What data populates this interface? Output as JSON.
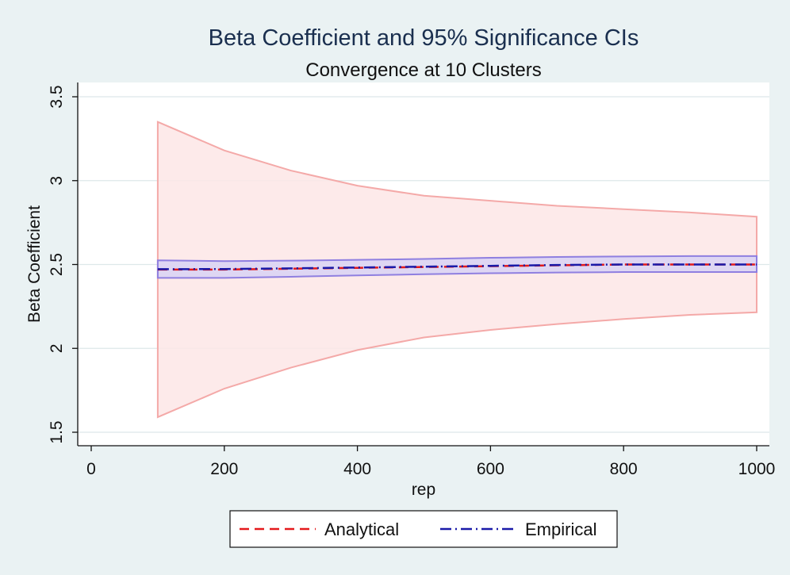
{
  "chart_data": {
    "type": "line",
    "title": "Beta Coefficient and 95% Significance CIs",
    "subtitle": "Convergence at 10 Clusters",
    "xlabel": "rep",
    "ylabel": "Beta Coefficient",
    "xlim": [
      0,
      1000
    ],
    "ylim": [
      1.5,
      3.5
    ],
    "x_ticks": [
      0,
      200,
      400,
      600,
      800,
      1000
    ],
    "y_ticks": [
      1.5,
      2,
      2.5,
      3,
      3.5
    ],
    "x_tick_labels": [
      "0",
      "200",
      "400",
      "600",
      "800",
      "1000"
    ],
    "y_tick_labels": [
      "1.5",
      "2",
      "2.5",
      "3",
      "3.5"
    ],
    "grid": true,
    "legend_position": "bottom",
    "x": [
      100,
      200,
      300,
      400,
      500,
      600,
      700,
      800,
      900,
      1000
    ],
    "series": [
      {
        "name": "Analytical",
        "color": "#e41a1c",
        "dash": "dash",
        "values": [
          2.47,
          2.47,
          2.475,
          2.48,
          2.485,
          2.49,
          2.495,
          2.5,
          2.5,
          2.5
        ]
      },
      {
        "name": "Empirical",
        "color": "#1a1aa8",
        "dash": "dashdot",
        "values": [
          2.472,
          2.473,
          2.477,
          2.482,
          2.487,
          2.492,
          2.497,
          2.5,
          2.5,
          2.5
        ]
      }
    ],
    "bands": [
      {
        "series": "Analytical",
        "fill": "#fde6e6",
        "stroke": "#f4a9a8",
        "upper": [
          3.35,
          3.18,
          3.06,
          2.97,
          2.91,
          2.88,
          2.85,
          2.83,
          2.81,
          2.785
        ],
        "lower": [
          1.59,
          1.76,
          1.885,
          1.99,
          2.065,
          2.11,
          2.145,
          2.175,
          2.2,
          2.215
        ]
      },
      {
        "series": "Empirical",
        "fill": "#d8d2f5",
        "stroke": "#8f7fe0",
        "upper": [
          2.525,
          2.52,
          2.523,
          2.528,
          2.533,
          2.54,
          2.545,
          2.548,
          2.55,
          2.55
        ],
        "lower": [
          2.42,
          2.42,
          2.427,
          2.435,
          2.442,
          2.448,
          2.452,
          2.455,
          2.455,
          2.455
        ]
      }
    ]
  }
}
